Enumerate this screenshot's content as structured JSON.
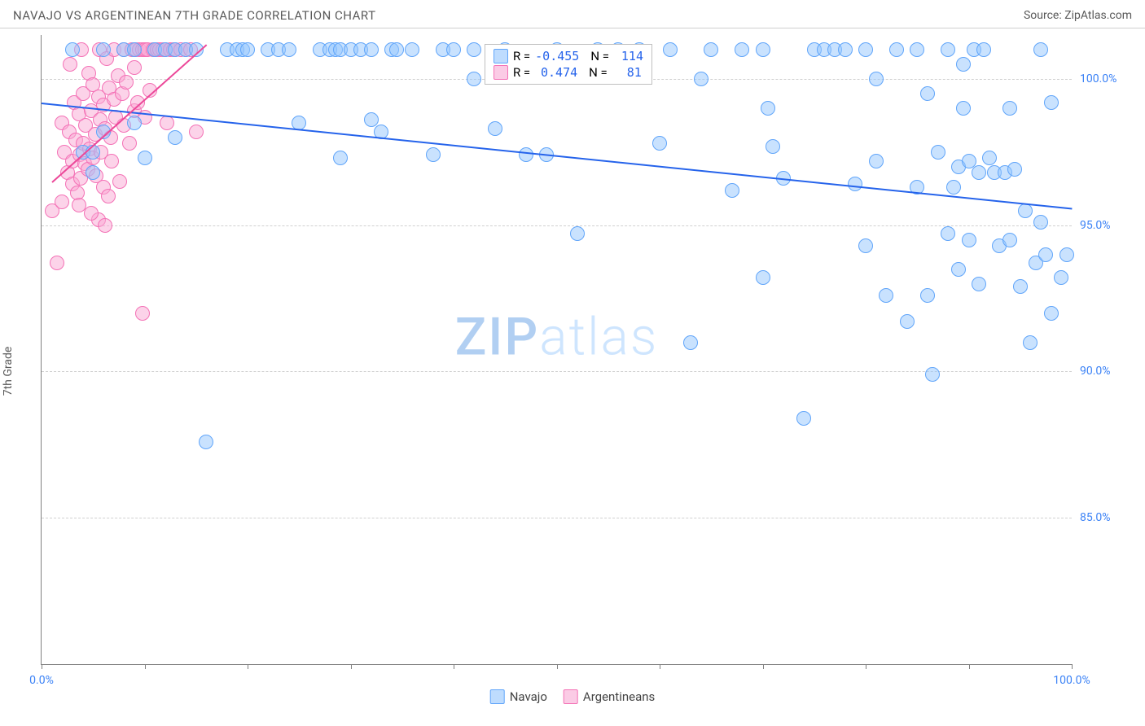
{
  "header": {
    "title": "NAVAJO VS ARGENTINEAN 7TH GRADE CORRELATION CHART",
    "source": "Source: ZipAtlas.com"
  },
  "chart": {
    "type": "scatter",
    "y_axis_label": "7th Grade",
    "watermark_zip": "ZIP",
    "watermark_atlas": "atlas",
    "xlim": [
      0,
      100
    ],
    "ylim": [
      80,
      101.5
    ],
    "x_ticks": [
      0,
      10,
      20,
      30,
      40,
      50,
      60,
      70,
      80,
      90,
      100
    ],
    "x_tick_labels": {
      "0": "0.0%",
      "100": "100.0%"
    },
    "y_gridlines": [
      85,
      90,
      95,
      100
    ],
    "y_tick_labels": {
      "85": "85.0%",
      "90": "90.0%",
      "95": "95.0%",
      "100": "100.0%"
    },
    "grid_color": "#d0d0d0",
    "axis_color": "#808080",
    "background_color": "#ffffff",
    "marker_radius": 9,
    "label_fontsize": 14,
    "tick_color": "#3b82f6",
    "series": {
      "navajo": {
        "label": "Navajo",
        "color_fill": "rgba(147,197,253,0.5)",
        "color_stroke": "#60a5fa",
        "regression": {
          "x1": 0,
          "y1": 99.2,
          "x2": 100,
          "y2": 95.6,
          "color": "#2563eb",
          "width": 2
        },
        "R": "-0.455",
        "N": "114",
        "points": [
          [
            3,
            101
          ],
          [
            4,
            97.5
          ],
          [
            5,
            96.8
          ],
          [
            5,
            97.5
          ],
          [
            6,
            98.2
          ],
          [
            6,
            101
          ],
          [
            8,
            101
          ],
          [
            9,
            98.5
          ],
          [
            9,
            101
          ],
          [
            10,
            97.3
          ],
          [
            11,
            101
          ],
          [
            12,
            101
          ],
          [
            13,
            98
          ],
          [
            13,
            101
          ],
          [
            14,
            101
          ],
          [
            15,
            101
          ],
          [
            16,
            87.6
          ],
          [
            18,
            101
          ],
          [
            19,
            101
          ],
          [
            19.5,
            101
          ],
          [
            20,
            101
          ],
          [
            22,
            101
          ],
          [
            23,
            101
          ],
          [
            24,
            101
          ],
          [
            25,
            98.5
          ],
          [
            27,
            101
          ],
          [
            28,
            101
          ],
          [
            28.5,
            101
          ],
          [
            29,
            101
          ],
          [
            29,
            97.3
          ],
          [
            30,
            101
          ],
          [
            31,
            101
          ],
          [
            32,
            101
          ],
          [
            32,
            98.6
          ],
          [
            33,
            98.2
          ],
          [
            34,
            101
          ],
          [
            34.5,
            101
          ],
          [
            36,
            101
          ],
          [
            38,
            97.4
          ],
          [
            39,
            101
          ],
          [
            40,
            101
          ],
          [
            42,
            101
          ],
          [
            42,
            100
          ],
          [
            44,
            98.3
          ],
          [
            45,
            101
          ],
          [
            47,
            97.4
          ],
          [
            49,
            97.4
          ],
          [
            50,
            101
          ],
          [
            52,
            94.7
          ],
          [
            54,
            101
          ],
          [
            56,
            101
          ],
          [
            58,
            101
          ],
          [
            60,
            97.8
          ],
          [
            61,
            101
          ],
          [
            63,
            91
          ],
          [
            64,
            100
          ],
          [
            65,
            101
          ],
          [
            67,
            96.2
          ],
          [
            68,
            101
          ],
          [
            70,
            101
          ],
          [
            70,
            93.2
          ],
          [
            71,
            97.7
          ],
          [
            72,
            96.6
          ],
          [
            74,
            88.4
          ],
          [
            75,
            101
          ],
          [
            76,
            101
          ],
          [
            77,
            101
          ],
          [
            78,
            101
          ],
          [
            79,
            96.4
          ],
          [
            80,
            101
          ],
          [
            80,
            94.3
          ],
          [
            81,
            97.2
          ],
          [
            81,
            100
          ],
          [
            82,
            92.6
          ],
          [
            83,
            101
          ],
          [
            84,
            91.7
          ],
          [
            85,
            101
          ],
          [
            85,
            96.3
          ],
          [
            86,
            99.5
          ],
          [
            86,
            92.6
          ],
          [
            87,
            97.5
          ],
          [
            88,
            101
          ],
          [
            88,
            94.7
          ],
          [
            88.5,
            96.3
          ],
          [
            89,
            93.5
          ],
          [
            89,
            97
          ],
          [
            89.5,
            100.5
          ],
          [
            89.5,
            99
          ],
          [
            90,
            94.5
          ],
          [
            90,
            97.2
          ],
          [
            90.5,
            101
          ],
          [
            91,
            96.8
          ],
          [
            91,
            93
          ],
          [
            91.5,
            101
          ],
          [
            92,
            97.3
          ],
          [
            92.5,
            96.8
          ],
          [
            93,
            94.3
          ],
          [
            93.5,
            96.8
          ],
          [
            94,
            94.5
          ],
          [
            94,
            99
          ],
          [
            94.5,
            96.9
          ],
          [
            95,
            92.9
          ],
          [
            95.5,
            95.5
          ],
          [
            96,
            91.0
          ],
          [
            96.5,
            93.7
          ],
          [
            97,
            95.1
          ],
          [
            97,
            101
          ],
          [
            97.5,
            94.0
          ],
          [
            98,
            92.0
          ],
          [
            98,
            99.2
          ],
          [
            99,
            93.2
          ],
          [
            99.5,
            94.0
          ],
          [
            86.5,
            89.9
          ],
          [
            70.5,
            99
          ]
        ]
      },
      "argentinean": {
        "label": "Argentineans",
        "color_fill": "rgba(249,168,212,0.5)",
        "color_stroke": "#f472b6",
        "regression": {
          "x1": 1,
          "y1": 96.5,
          "x2": 16,
          "y2": 101.2,
          "color": "#ec4899",
          "width": 2
        },
        "R": "0.474",
        "N": "81",
        "points": [
          [
            1,
            95.5
          ],
          [
            1.5,
            93.7
          ],
          [
            2,
            95.8
          ],
          [
            2,
            98.5
          ],
          [
            2.2,
            97.5
          ],
          [
            2.5,
            96.8
          ],
          [
            2.7,
            98.2
          ],
          [
            2.8,
            100.5
          ],
          [
            3,
            96.4
          ],
          [
            3,
            97.2
          ],
          [
            3.2,
            99.2
          ],
          [
            3.3,
            97.9
          ],
          [
            3.5,
            96.1
          ],
          [
            3.6,
            98.8
          ],
          [
            3.7,
            97.4
          ],
          [
            3.8,
            96.6
          ],
          [
            3.9,
            101
          ],
          [
            4,
            97.8
          ],
          [
            4,
            99.5
          ],
          [
            4.2,
            97.1
          ],
          [
            4.3,
            98.4
          ],
          [
            4.5,
            96.9
          ],
          [
            4.6,
            100.2
          ],
          [
            4.7,
            97.6
          ],
          [
            4.8,
            98.9
          ],
          [
            5,
            99.8
          ],
          [
            5,
            97.3
          ],
          [
            5.2,
            98.1
          ],
          [
            5.3,
            96.7
          ],
          [
            5.5,
            99.4
          ],
          [
            5.6,
            101
          ],
          [
            5.7,
            98.6
          ],
          [
            5.8,
            97.5
          ],
          [
            6,
            99.1
          ],
          [
            6,
            96.3
          ],
          [
            6.2,
            98.3
          ],
          [
            6.3,
            100.7
          ],
          [
            6.5,
            96.0
          ],
          [
            6.6,
            99.7
          ],
          [
            6.7,
            98.0
          ],
          [
            6.8,
            97.2
          ],
          [
            7,
            101
          ],
          [
            7,
            99.3
          ],
          [
            7.2,
            98.7
          ],
          [
            7.4,
            100.1
          ],
          [
            7.6,
            96.5
          ],
          [
            7.8,
            99.5
          ],
          [
            8,
            101
          ],
          [
            8,
            98.4
          ],
          [
            8.2,
            99.9
          ],
          [
            8.5,
            97.8
          ],
          [
            8.8,
            101
          ],
          [
            9,
            98.9
          ],
          [
            9,
            100.4
          ],
          [
            9.2,
            101
          ],
          [
            9.3,
            99.2
          ],
          [
            9.5,
            101
          ],
          [
            9.8,
            101
          ],
          [
            10,
            98.7
          ],
          [
            10,
            101
          ],
          [
            10.3,
            101
          ],
          [
            10.5,
            99.6
          ],
          [
            10.8,
            101
          ],
          [
            11,
            101
          ],
          [
            11.2,
            101
          ],
          [
            11.5,
            101
          ],
          [
            11.8,
            101
          ],
          [
            12,
            101
          ],
          [
            12.2,
            98.5
          ],
          [
            12.5,
            101
          ],
          [
            12.8,
            101
          ],
          [
            13,
            101
          ],
          [
            13.5,
            101
          ],
          [
            14,
            101
          ],
          [
            14.5,
            101
          ],
          [
            9.8,
            92.0
          ],
          [
            5.5,
            95.2
          ],
          [
            6.2,
            95.0
          ],
          [
            4.8,
            95.4
          ],
          [
            3.6,
            95.7
          ],
          [
            15,
            98.2
          ]
        ]
      }
    },
    "legend_top": {
      "rows": [
        {
          "swatch": "blue",
          "r_label": "R =",
          "r_val": "-0.455",
          "n_label": "N =",
          "n_val": "114"
        },
        {
          "swatch": "pink",
          "r_label": "R =",
          "r_val": "0.474",
          "n_label": "N =",
          "81": "81",
          "n_val": "81"
        }
      ]
    },
    "legend_bottom": [
      {
        "swatch": "blue",
        "label": "Navajo"
      },
      {
        "swatch": "pink",
        "label": "Argentineans"
      }
    ]
  }
}
